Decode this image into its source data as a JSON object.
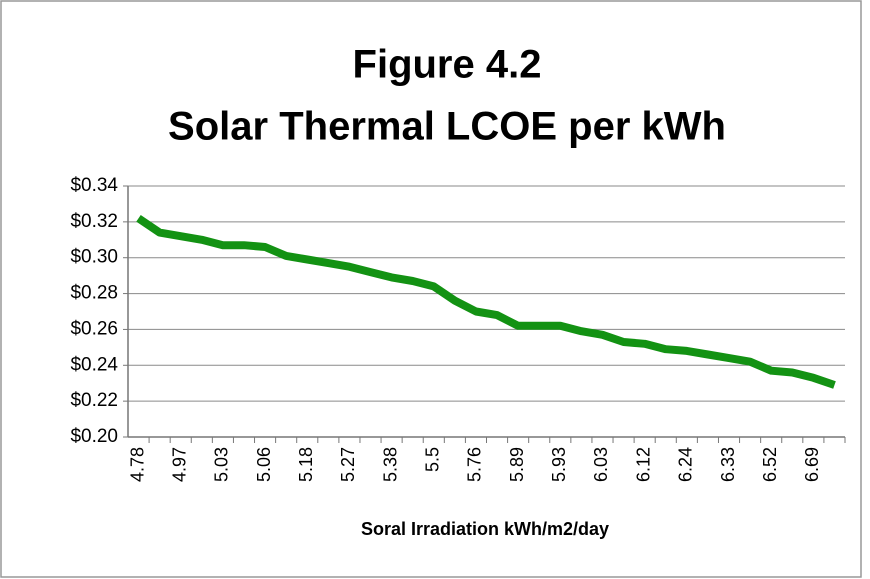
{
  "chart_data": {
    "type": "line",
    "title": [
      "Figure 4.2",
      "Solar Thermal LCOE per kWh"
    ],
    "x_label": "Soral Irradiation kWh/m2/day",
    "categories": [
      "4.78",
      null,
      "4.97",
      null,
      "5.03",
      null,
      "5.06",
      null,
      "5.18",
      null,
      "5.27",
      null,
      "5.38",
      null,
      "5.5",
      null,
      "5.76",
      null,
      "5.89",
      null,
      "5.93",
      null,
      "6.03",
      null,
      "6.12",
      null,
      "6.24",
      null,
      "6.33",
      null,
      "6.52",
      null,
      "6.69",
      null
    ],
    "series": [
      {
        "name": "LCOE",
        "color": "#139213",
        "values": [
          0.322,
          0.314,
          0.312,
          0.31,
          0.307,
          0.307,
          0.306,
          0.301,
          0.299,
          0.297,
          0.295,
          0.292,
          0.289,
          0.287,
          0.284,
          0.276,
          0.27,
          0.268,
          0.262,
          0.262,
          0.262,
          0.259,
          0.257,
          0.253,
          0.252,
          0.249,
          0.248,
          0.246,
          0.244,
          0.242,
          0.237,
          0.236,
          0.233,
          0.229
        ]
      }
    ],
    "ylim": [
      0.2,
      0.34
    ],
    "yticks": [
      {
        "value": 0.2,
        "label": "$0.20"
      },
      {
        "value": 0.22,
        "label": "$0.22"
      },
      {
        "value": 0.24,
        "label": "$0.24"
      },
      {
        "value": 0.26,
        "label": "$0.26"
      },
      {
        "value": 0.28,
        "label": "$0.28"
      },
      {
        "value": 0.3,
        "label": "$0.30"
      },
      {
        "value": 0.32,
        "label": "$0.32"
      },
      {
        "value": 0.34,
        "label": "$0.34"
      }
    ],
    "grid": true
  }
}
